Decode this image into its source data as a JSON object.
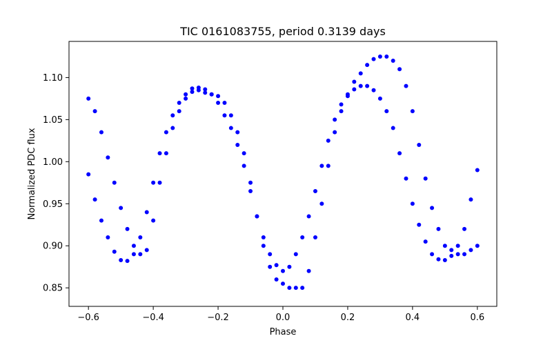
{
  "chart_data": {
    "type": "scatter",
    "title": "TIC 0161083755, period 0.3139 days",
    "xlabel": "Phase",
    "ylabel": "Normalized PDC flux",
    "xlim": [
      -0.66,
      0.66
    ],
    "ylim": [
      0.828,
      1.143
    ],
    "xticks": [
      -0.6,
      -0.4,
      -0.2,
      0.0,
      0.2,
      0.4,
      0.6
    ],
    "xtick_labels": [
      "−0.6",
      "−0.4",
      "−0.2",
      "0.0",
      "0.2",
      "0.4",
      "0.6"
    ],
    "yticks": [
      0.85,
      0.9,
      0.95,
      1.0,
      1.05,
      1.1
    ],
    "ytick_labels": [
      "0.85",
      "0.90",
      "0.95",
      "1.00",
      "1.05",
      "1.10"
    ],
    "grid": false,
    "legend": "none",
    "marker_color": "#0000ff",
    "series": [
      {
        "x": [
          -0.6,
          -0.58,
          -0.56,
          -0.54,
          -0.52,
          -0.5,
          -0.48,
          -0.46,
          -0.44,
          -0.42,
          -0.4,
          -0.38,
          -0.36,
          -0.34,
          -0.32,
          -0.3,
          -0.28,
          -0.26,
          -0.24,
          -0.22,
          -0.2,
          -0.18,
          -0.16,
          -0.14,
          -0.12,
          -0.1,
          -0.08,
          -0.06,
          -0.04,
          -0.02,
          0.0,
          0.02,
          0.04,
          0.06,
          0.08,
          0.1,
          0.12,
          0.14,
          0.16,
          0.18,
          0.2,
          0.22,
          0.24,
          0.26,
          0.28,
          0.3,
          0.32,
          0.34,
          0.36,
          0.38,
          0.4,
          0.42,
          0.44,
          0.46,
          0.48,
          0.5,
          0.52,
          0.54,
          0.56,
          0.58,
          0.6
        ],
        "y": [
          1.075,
          1.06,
          1.035,
          1.005,
          0.975,
          0.945,
          0.92,
          0.9,
          0.89,
          0.895,
          0.93,
          0.975,
          1.01,
          1.04,
          1.06,
          1.075,
          1.083,
          1.085,
          1.082,
          1.08,
          1.078,
          1.07,
          1.055,
          1.035,
          1.01,
          0.975,
          0.935,
          0.9,
          0.875,
          0.86,
          0.855,
          0.85,
          0.85,
          0.85,
          0.87,
          0.91,
          0.95,
          0.995,
          1.035,
          1.06,
          1.08,
          1.095,
          1.105,
          1.115,
          1.122,
          1.125,
          1.125,
          1.12,
          1.11,
          1.09,
          1.06,
          1.02,
          0.98,
          0.945,
          0.92,
          0.9,
          0.895,
          0.89,
          0.89,
          0.895,
          0.9
        ]
      },
      {
        "x": [
          -0.6,
          -0.58,
          -0.56,
          -0.54,
          -0.52,
          -0.5,
          -0.48,
          -0.46,
          -0.44,
          -0.42,
          -0.4,
          -0.38,
          -0.36,
          -0.34,
          -0.32,
          -0.3,
          -0.28,
          -0.26,
          -0.24,
          -0.22,
          -0.2,
          -0.18,
          -0.16,
          -0.14,
          -0.12,
          -0.1,
          -0.08,
          -0.06,
          -0.04,
          -0.02,
          0.0,
          0.02,
          0.04,
          0.06,
          0.08,
          0.1,
          0.12,
          0.14,
          0.16,
          0.18,
          0.2,
          0.22,
          0.24,
          0.26,
          0.28,
          0.3,
          0.32,
          0.34,
          0.36,
          0.38,
          0.4,
          0.42,
          0.44,
          0.46,
          0.48,
          0.5,
          0.52,
          0.54,
          0.56,
          0.58,
          0.6
        ],
        "y": [
          0.985,
          0.955,
          0.93,
          0.91,
          0.893,
          0.883,
          0.882,
          0.89,
          0.91,
          0.94,
          0.975,
          1.01,
          1.035,
          1.055,
          1.07,
          1.08,
          1.087,
          1.088,
          1.086,
          1.08,
          1.07,
          1.055,
          1.04,
          1.02,
          0.995,
          0.965,
          0.935,
          0.91,
          0.89,
          0.877,
          0.87,
          0.875,
          0.89,
          0.91,
          0.935,
          0.965,
          0.995,
          1.025,
          1.05,
          1.068,
          1.078,
          1.086,
          1.09,
          1.09,
          1.085,
          1.075,
          1.06,
          1.04,
          1.01,
          0.98,
          0.95,
          0.925,
          0.905,
          0.89,
          0.884,
          0.883,
          0.888,
          0.9,
          0.92,
          0.955,
          0.99
        ]
      }
    ]
  }
}
